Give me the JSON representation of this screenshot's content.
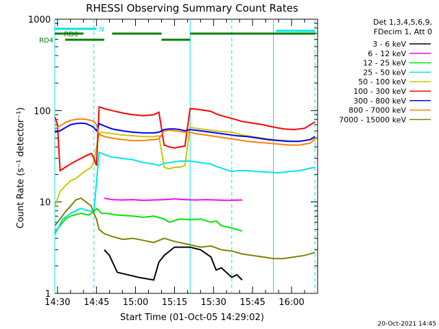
{
  "chart_data": {
    "type": "line",
    "title": "RHESSI Observing Summary Count Rates",
    "xlabel": "Start Time (01-Oct-05 14:29:02)",
    "ylabel": "Count Rate (s⁻¹ detector⁻¹)",
    "y_scale": "log",
    "ylim": [
      1,
      1000
    ],
    "xlim_minutes": [
      0,
      101
    ],
    "x_tick_labels": [
      "14:30",
      "14:45",
      "15:00",
      "15:15",
      "15:30",
      "15:45",
      "16:00"
    ],
    "x_tick_minutes": [
      1,
      16,
      31,
      46,
      61,
      76,
      91
    ],
    "y_tick_labels": [
      "1",
      "10",
      "100",
      "1000"
    ],
    "y_tick_values": [
      1,
      10,
      100,
      1000
    ],
    "legend_header": [
      "Det 1,3,4,5,6,9,",
      "FDecim 1, Att 0"
    ],
    "footer_date": "20-Oct-2021 14:45",
    "flags": [
      {
        "label": "N",
        "color": "#00e5e5",
        "segments": [
          [
            0,
            16
          ]
        ]
      },
      {
        "label": "",
        "color": "#00e5e5",
        "segments": [
          [
            85,
            100
          ]
        ]
      },
      {
        "label": "RD0",
        "color": "#008000",
        "segments": [
          [
            0,
            11
          ],
          [
            22,
            41
          ],
          [
            52,
            100
          ]
        ]
      },
      {
        "label": "RD4",
        "color": "#008000",
        "segments": [
          [
            4,
            19
          ],
          [
            41,
            52
          ]
        ]
      }
    ],
    "vlines": [
      {
        "minute": 0,
        "style": "solid"
      },
      {
        "minute": 15,
        "style": "dashed"
      },
      {
        "minute": 52,
        "style": "solid"
      },
      {
        "minute": 68,
        "style": "dashed"
      },
      {
        "minute": 84,
        "style": "solid"
      },
      {
        "minute": 100,
        "style": "dashed"
      }
    ],
    "series": [
      {
        "name": "3 - 6 keV",
        "color": "#000000",
        "points": [
          [
            19,
            3
          ],
          [
            21,
            2.6
          ],
          [
            24,
            1.7
          ],
          [
            28,
            1.6
          ],
          [
            32,
            1.5
          ],
          [
            38,
            1.4
          ],
          [
            40,
            2.2
          ],
          [
            42,
            2.6
          ],
          [
            46,
            3.2
          ],
          [
            52,
            3.2
          ],
          [
            56,
            3.0
          ],
          [
            60,
            2.5
          ],
          [
            62,
            1.8
          ],
          [
            64,
            1.9
          ],
          [
            68,
            1.5
          ],
          [
            70,
            1.6
          ],
          [
            72,
            1.4
          ]
        ]
      },
      {
        "name": "6 - 12 keV",
        "color": "#ff00ff",
        "points": [
          [
            19,
            11
          ],
          [
            22,
            10.6
          ],
          [
            26,
            10.5
          ],
          [
            30,
            10.6
          ],
          [
            34,
            10.4
          ],
          [
            38,
            10.5
          ],
          [
            42,
            10.6
          ],
          [
            46,
            10.8
          ],
          [
            50,
            10.6
          ],
          [
            54,
            10.5
          ],
          [
            58,
            10.6
          ],
          [
            62,
            10.5
          ],
          [
            66,
            10.4
          ],
          [
            72,
            10.5
          ]
        ]
      },
      {
        "name": "12 - 25 keV",
        "color": "#00e600",
        "points": [
          [
            0,
            4.6
          ],
          [
            2,
            5.5
          ],
          [
            4,
            6.5
          ],
          [
            6,
            7.0
          ],
          [
            10,
            7.5
          ],
          [
            13,
            7.2
          ],
          [
            15,
            7.8
          ],
          [
            16,
            8.5
          ],
          [
            17,
            8.0
          ],
          [
            18,
            7.5
          ],
          [
            20,
            7.5
          ],
          [
            24,
            7.2
          ],
          [
            30,
            7.0
          ],
          [
            34,
            6.8
          ],
          [
            38,
            7.0
          ],
          [
            42,
            6.5
          ],
          [
            44,
            6.0
          ],
          [
            48,
            6.5
          ],
          [
            52,
            6.4
          ],
          [
            56,
            6.5
          ],
          [
            60,
            6.0
          ],
          [
            62,
            6.2
          ],
          [
            64,
            5.5
          ],
          [
            68,
            5.2
          ],
          [
            72,
            4.8
          ]
        ]
      },
      {
        "name": "25 - 50 keV",
        "color": "#00e5e5",
        "points": [
          [
            0,
            4.4
          ],
          [
            3,
            6.5
          ],
          [
            6,
            7.5
          ],
          [
            10,
            8.5
          ],
          [
            13,
            8.0
          ],
          [
            15,
            7.8
          ],
          [
            17,
            35
          ],
          [
            19,
            33
          ],
          [
            22,
            31
          ],
          [
            26,
            30
          ],
          [
            30,
            29
          ],
          [
            34,
            27
          ],
          [
            38,
            26
          ],
          [
            40,
            25
          ],
          [
            42,
            26.5
          ],
          [
            44,
            27
          ],
          [
            48,
            28
          ],
          [
            52,
            28
          ],
          [
            56,
            27
          ],
          [
            60,
            26
          ],
          [
            62,
            24.5
          ],
          [
            64,
            23.5
          ],
          [
            68,
            21.5
          ],
          [
            70,
            22.0
          ],
          [
            74,
            22
          ],
          [
            78,
            21.5
          ],
          [
            82,
            21.2
          ],
          [
            86,
            20.8
          ],
          [
            90,
            21.5
          ],
          [
            94,
            22
          ],
          [
            100,
            24
          ]
        ]
      },
      {
        "name": "50 - 100 keV",
        "color": "#c8c800",
        "points": [
          [
            0,
            9
          ],
          [
            2,
            13
          ],
          [
            4,
            15
          ],
          [
            6,
            17
          ],
          [
            8,
            18
          ],
          [
            10,
            20
          ],
          [
            12,
            22
          ],
          [
            14,
            24
          ],
          [
            15,
            28
          ],
          [
            16,
            40
          ],
          [
            17,
            55
          ],
          [
            18,
            58
          ],
          [
            22,
            56
          ],
          [
            26,
            54
          ],
          [
            30,
            53
          ],
          [
            34,
            52
          ],
          [
            38,
            52
          ],
          [
            40,
            53
          ],
          [
            42,
            24
          ],
          [
            44,
            23
          ],
          [
            46,
            24
          ],
          [
            48,
            24
          ],
          [
            50,
            25
          ],
          [
            52,
            66
          ],
          [
            54,
            64
          ],
          [
            58,
            62
          ],
          [
            60,
            61
          ],
          [
            62,
            60
          ],
          [
            64,
            59
          ],
          [
            68,
            58
          ],
          [
            70,
            56
          ],
          [
            72,
            54
          ],
          [
            76,
            52
          ],
          [
            80,
            50
          ],
          [
            84,
            48
          ],
          [
            88,
            47
          ],
          [
            92,
            46
          ],
          [
            96,
            47
          ],
          [
            100,
            49
          ]
        ]
      },
      {
        "name": "100 - 300 keV",
        "color": "#ff0000",
        "points": [
          [
            0,
            85
          ],
          [
            1,
            70
          ],
          [
            2,
            22
          ],
          [
            4,
            24
          ],
          [
            6,
            26
          ],
          [
            8,
            28
          ],
          [
            10,
            30
          ],
          [
            12,
            32
          ],
          [
            14,
            34
          ],
          [
            15,
            30
          ],
          [
            16,
            25
          ],
          [
            17,
            110
          ],
          [
            19,
            105
          ],
          [
            22,
            100
          ],
          [
            26,
            94
          ],
          [
            30,
            90
          ],
          [
            34,
            88
          ],
          [
            38,
            90
          ],
          [
            40,
            96
          ],
          [
            42,
            42
          ],
          [
            44,
            40
          ],
          [
            46,
            39
          ],
          [
            48,
            40
          ],
          [
            50,
            41
          ],
          [
            52,
            105
          ],
          [
            54,
            104
          ],
          [
            58,
            100
          ],
          [
            60,
            98
          ],
          [
            62,
            92
          ],
          [
            64,
            88
          ],
          [
            68,
            82
          ],
          [
            72,
            76
          ],
          [
            76,
            73
          ],
          [
            80,
            70
          ],
          [
            84,
            66
          ],
          [
            88,
            63
          ],
          [
            92,
            62
          ],
          [
            96,
            64
          ],
          [
            100,
            75
          ]
        ]
      },
      {
        "name": "300 - 800 keV",
        "color": "#0000ff",
        "points": [
          [
            0,
            58
          ],
          [
            2,
            60
          ],
          [
            4,
            65
          ],
          [
            6,
            70
          ],
          [
            8,
            72
          ],
          [
            10,
            73
          ],
          [
            12,
            72
          ],
          [
            14,
            68
          ],
          [
            15,
            65
          ],
          [
            16,
            60
          ],
          [
            17,
            72
          ],
          [
            19,
            68
          ],
          [
            22,
            63
          ],
          [
            26,
            60
          ],
          [
            30,
            58
          ],
          [
            34,
            57
          ],
          [
            38,
            57
          ],
          [
            40,
            58
          ],
          [
            42,
            62
          ],
          [
            44,
            63
          ],
          [
            46,
            63
          ],
          [
            48,
            62
          ],
          [
            50,
            60
          ],
          [
            52,
            62
          ],
          [
            54,
            61
          ],
          [
            58,
            59
          ],
          [
            62,
            57
          ],
          [
            66,
            55
          ],
          [
            70,
            53
          ],
          [
            74,
            52
          ],
          [
            78,
            50
          ],
          [
            82,
            48
          ],
          [
            86,
            47
          ],
          [
            90,
            46
          ],
          [
            94,
            46
          ],
          [
            98,
            48
          ],
          [
            100,
            52
          ]
        ]
      },
      {
        "name": "800 - 7000 keV",
        "color": "#ff8000",
        "points": [
          [
            0,
            63
          ],
          [
            2,
            68
          ],
          [
            4,
            74
          ],
          [
            6,
            78
          ],
          [
            8,
            80
          ],
          [
            10,
            81
          ],
          [
            12,
            80
          ],
          [
            14,
            78
          ],
          [
            15,
            76
          ],
          [
            16,
            70
          ],
          [
            17,
            55
          ],
          [
            19,
            52
          ],
          [
            22,
            50
          ],
          [
            26,
            48
          ],
          [
            30,
            47
          ],
          [
            34,
            47
          ],
          [
            38,
            48
          ],
          [
            40,
            49
          ],
          [
            42,
            60
          ],
          [
            44,
            61
          ],
          [
            46,
            60
          ],
          [
            48,
            59
          ],
          [
            50,
            58
          ],
          [
            52,
            58
          ],
          [
            54,
            56
          ],
          [
            58,
            54
          ],
          [
            62,
            52
          ],
          [
            66,
            50
          ],
          [
            70,
            48
          ],
          [
            74,
            46
          ],
          [
            78,
            45
          ],
          [
            82,
            44
          ],
          [
            86,
            43
          ],
          [
            90,
            42
          ],
          [
            94,
            42
          ],
          [
            98,
            44
          ],
          [
            100,
            48
          ]
        ]
      },
      {
        "name": "7000 - 15000 keV",
        "color": "#808000",
        "points": [
          [
            0,
            5.5
          ],
          [
            2,
            6.5
          ],
          [
            4,
            7.8
          ],
          [
            6,
            9
          ],
          [
            8,
            10.5
          ],
          [
            10,
            11
          ],
          [
            12,
            10
          ],
          [
            14,
            9
          ],
          [
            15,
            7.5
          ],
          [
            16,
            6.5
          ],
          [
            17,
            5
          ],
          [
            19,
            4.5
          ],
          [
            22,
            4.2
          ],
          [
            26,
            3.9
          ],
          [
            30,
            4.0
          ],
          [
            34,
            3.8
          ],
          [
            38,
            3.6
          ],
          [
            42,
            4.0
          ],
          [
            46,
            3.7
          ],
          [
            50,
            3.5
          ],
          [
            52,
            3.4
          ],
          [
            56,
            3.2
          ],
          [
            60,
            3.3
          ],
          [
            64,
            3.0
          ],
          [
            68,
            2.9
          ],
          [
            72,
            2.7
          ],
          [
            76,
            2.6
          ],
          [
            80,
            2.5
          ],
          [
            84,
            2.4
          ],
          [
            88,
            2.4
          ],
          [
            92,
            2.5
          ],
          [
            96,
            2.6
          ],
          [
            100,
            2.8
          ]
        ]
      }
    ]
  }
}
